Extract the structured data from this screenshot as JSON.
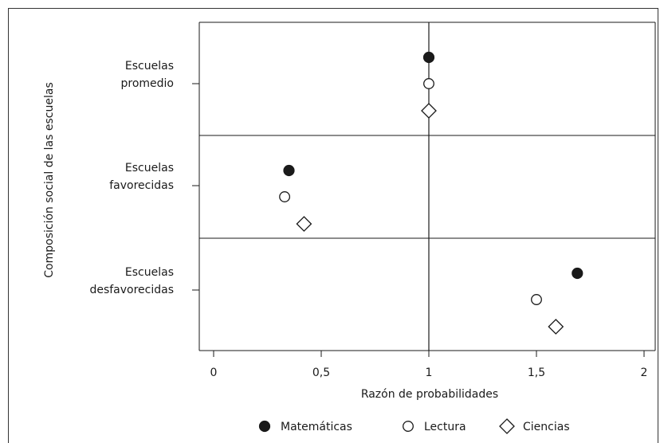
{
  "chart_data": {
    "type": "scatter",
    "xlabel": "Razón de probabilidades",
    "ylabel": "Composición social de las escuelas",
    "xlim": [
      -0.05,
      2.05
    ],
    "xticks": [
      {
        "value": 0,
        "label": "0"
      },
      {
        "value": 0.5,
        "label": "0,5"
      },
      {
        "value": 1,
        "label": "1"
      },
      {
        "value": 1.5,
        "label": "1,5"
      },
      {
        "value": 2,
        "label": "2"
      }
    ],
    "reference_line_x": 1,
    "categories": [
      {
        "label_lines": [
          "Escuelas",
          "promedio"
        ]
      },
      {
        "label_lines": [
          "Escuelas",
          "favorecidas"
        ]
      },
      {
        "label_lines": [
          "Escuelas",
          "desfavorecidas"
        ]
      }
    ],
    "series": [
      {
        "name": "Matemáticas",
        "marker": "filled-circle",
        "values": [
          1.0,
          0.35,
          1.69
        ]
      },
      {
        "name": "Lectura",
        "marker": "open-circle",
        "values": [
          1.0,
          0.33,
          1.5
        ]
      },
      {
        "name": "Ciencias",
        "marker": "open-diamond",
        "values": [
          1.0,
          0.42,
          1.59
        ]
      }
    ],
    "grid": false,
    "legend_position": "bottom"
  },
  "colors": {
    "ink": "#1a1a1a",
    "background": "#ffffff"
  }
}
